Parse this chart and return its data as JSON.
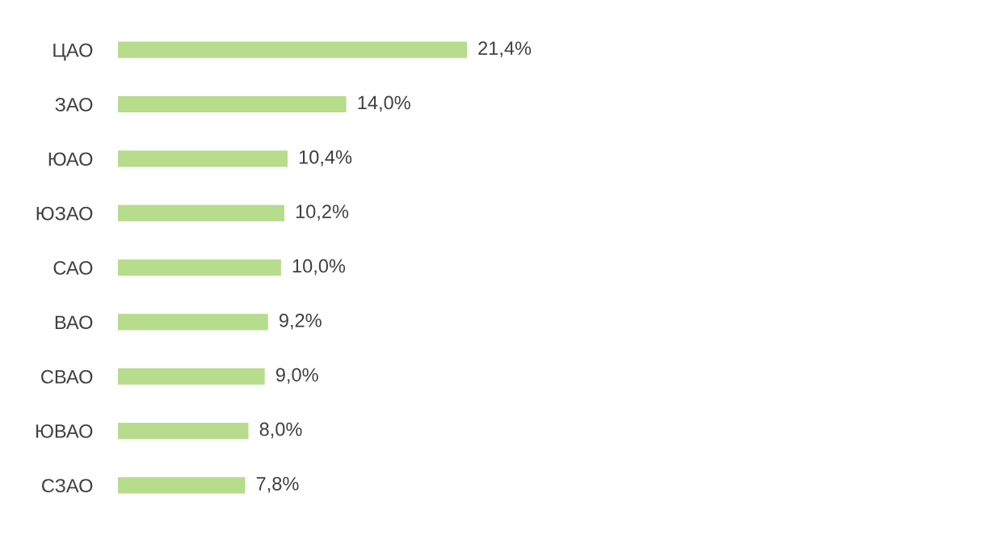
{
  "chart_data": {
    "type": "bar",
    "orientation": "horizontal",
    "categories": [
      "ЦАО",
      "ЗАО",
      "ЮАО",
      "ЮЗАО",
      "САО",
      "ВАО",
      "СВАО",
      "ЮВАО",
      "СЗАО"
    ],
    "values": [
      21.4,
      14.0,
      10.4,
      10.2,
      10.0,
      9.2,
      9.0,
      8.0,
      7.8
    ],
    "value_labels": [
      "21,4%",
      "14,0%",
      "10,4%",
      "10,2%",
      "10,0%",
      "9,2%",
      "9,0%",
      "8,0%",
      "7,8%"
    ],
    "color": "#b6dc8c",
    "grid": false,
    "legend": false
  }
}
